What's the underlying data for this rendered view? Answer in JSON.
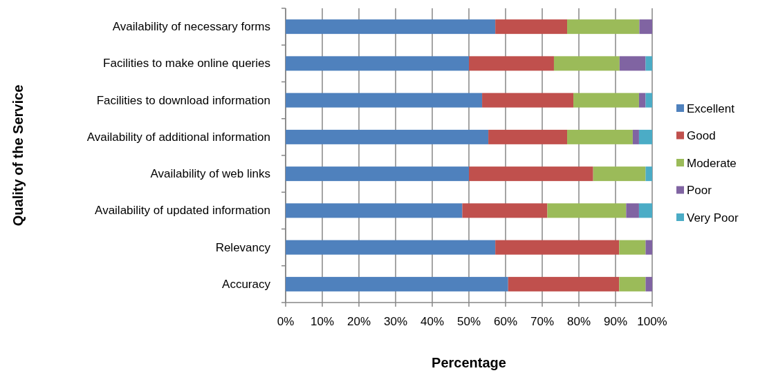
{
  "chart_data": {
    "type": "bar",
    "orientation": "horizontal",
    "stacked": true,
    "xlabel": "Percentage",
    "ylabel": "Quality of the Service",
    "categories": [
      "Availability of necessary forms",
      "Facilities to make online queries",
      "Facilities to download information",
      "Availability of additional information",
      "Availability of web links",
      "Availability of updated information",
      "Relevancy",
      "Accuracy"
    ],
    "series": [
      {
        "name": "Excellent",
        "color": "#4f81bd",
        "values": [
          57.2,
          50,
          53.6,
          55.3,
          50,
          48.2,
          57.2,
          60.7
        ]
      },
      {
        "name": "Good",
        "color": "#c0504d",
        "values": [
          19.6,
          23.2,
          24.9,
          21.5,
          33.9,
          23.2,
          33.8,
          30.3
        ]
      },
      {
        "name": "Moderate",
        "color": "#9bbb59",
        "values": [
          19.7,
          17.9,
          17.9,
          17.9,
          14.3,
          21.5,
          7.2,
          7.2
        ]
      },
      {
        "name": "Poor",
        "color": "#8064a2",
        "values": [
          3.5,
          7.1,
          1.8,
          1.7,
          0,
          3.5,
          1.8,
          1.8
        ]
      },
      {
        "name": "Very Poor",
        "color": "#4bacc6",
        "values": [
          0,
          1.8,
          1.8,
          3.6,
          1.8,
          3.6,
          0,
          0
        ]
      }
    ],
    "xlim": [
      0,
      100
    ],
    "xticks": [
      {
        "value": 0,
        "label": "0%"
      },
      {
        "value": 10,
        "label": "10%"
      },
      {
        "value": 20,
        "label": "20%"
      },
      {
        "value": 30,
        "label": "30%"
      },
      {
        "value": 40,
        "label": "40%"
      },
      {
        "value": 50,
        "label": "50%"
      },
      {
        "value": 60,
        "label": "60%"
      },
      {
        "value": 70,
        "label": "70%"
      },
      {
        "value": 80,
        "label": "80%"
      },
      {
        "value": 90,
        "label": "90%"
      },
      {
        "value": 100,
        "label": "100%"
      }
    ],
    "grid": "x",
    "legend": "right"
  }
}
